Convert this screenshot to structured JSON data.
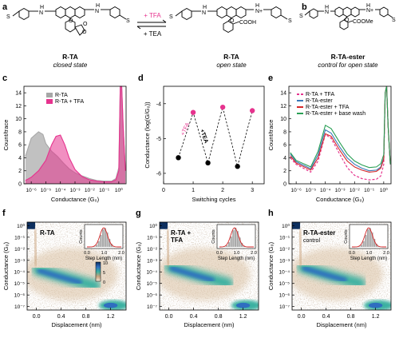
{
  "panel_letters": [
    "a",
    "b",
    "c",
    "d",
    "e",
    "f",
    "g",
    "h"
  ],
  "top": {
    "left_name": "R-TA",
    "left_state": "closed state",
    "arrow_top": "+ TFA",
    "arrow_bottom": "+ TEA",
    "mid_name": "R-TA",
    "mid_state": "open state",
    "right_name": "R-TA-ester",
    "right_state": "control for open state",
    "acid_group": "COOH",
    "ester_group": "COOMe",
    "atoms": {
      "H": "H",
      "N": "N",
      "Nplus": "N+",
      "O": "O",
      "S": "S"
    }
  },
  "colors": {
    "tfa": "#e6338e",
    "gray": "#a7a7a7",
    "blue": "#3a78b8",
    "red": "#d62728",
    "green": "#2aa055",
    "dark": "#0d2f5f"
  },
  "chart_data": [
    {
      "panel": "c",
      "type": "area",
      "ylabel": "Count/trace",
      "xlabel": "Conductance (G₀)",
      "xticks": [
        "10⁻⁶",
        "10⁻⁵",
        "10⁻⁴",
        "10⁻³",
        "10⁻²",
        "10⁻¹",
        "10⁰"
      ],
      "yticks": [
        "0",
        "2",
        "4",
        "6",
        "8",
        "10",
        "12",
        "14"
      ],
      "ylim": [
        0,
        15
      ],
      "series": [
        {
          "name": "R-TA",
          "x": [
            -6.4,
            -6,
            -5.5,
            -5.2,
            -5,
            -4.6,
            -4.2,
            -3.8,
            -3.4,
            -3,
            -2.5,
            -2,
            -1.5,
            -1,
            -0.5,
            -0.2,
            0,
            0.1,
            0.2,
            0.3,
            0.45
          ],
          "values": [
            4.2,
            7.0,
            8.0,
            7.6,
            6.2,
            5.0,
            4.2,
            3.2,
            2.3,
            1.7,
            1.2,
            0.8,
            0.5,
            0.4,
            0.4,
            0.8,
            2.5,
            15,
            15,
            9,
            2
          ]
        },
        {
          "name": "R-TA + TFA",
          "x": [
            -6.4,
            -6,
            -5.5,
            -5,
            -4.6,
            -4.3,
            -4,
            -3.7,
            -3.4,
            -3,
            -2.5,
            -2,
            -1.5,
            -1,
            -0.5,
            -0.2,
            0,
            0.1,
            0.2,
            0.3,
            0.45
          ],
          "values": [
            0.5,
            1.0,
            2.0,
            3.6,
            6.0,
            7.3,
            7.5,
            6.0,
            4.0,
            2.2,
            1.1,
            0.6,
            0.4,
            0.3,
            0.3,
            0.6,
            2.0,
            15,
            15,
            9,
            2
          ]
        }
      ]
    },
    {
      "panel": "d",
      "type": "scatter",
      "ylabel": "Conductance (log(G/G₀))",
      "xlabel": "Switching cycles",
      "xticks": [
        "0",
        "1",
        "2",
        "3"
      ],
      "yticks": [
        "-6",
        "-5",
        "-4"
      ],
      "xlim": [
        0,
        3.4
      ],
      "ylim": [
        -6.3,
        -3.5
      ],
      "annotations": [
        "+TFA",
        "+TEA"
      ],
      "series": [
        {
          "name": "open",
          "x": [
            1,
            2,
            3
          ],
          "values": [
            -4.25,
            -4.1,
            -4.2
          ]
        },
        {
          "name": "closed",
          "x": [
            0.5,
            1.5,
            2.5
          ],
          "values": [
            -5.55,
            -5.7,
            -5.8
          ]
        }
      ]
    },
    {
      "panel": "e",
      "type": "line",
      "ylabel": "Count/trace",
      "xlabel": "Conductance (G₀)",
      "xticks": [
        "10⁻⁶",
        "10⁻⁵",
        "10⁻⁴",
        "10⁻³",
        "10⁻²",
        "10⁻¹",
        "10⁰"
      ],
      "yticks": [
        "0",
        "2",
        "4",
        "6",
        "8",
        "10",
        "12",
        "14"
      ],
      "ylim": [
        0,
        15
      ],
      "series": [
        {
          "name": "R-TA + TFA",
          "x": [
            -6.4,
            -6,
            -5,
            -4.5,
            -4,
            -3.6,
            -3,
            -2.5,
            -2,
            -1.5,
            -1,
            -0.5,
            -0.2,
            0,
            0.1,
            0.2,
            0.3,
            0.45
          ],
          "values": [
            4,
            3,
            1.8,
            3.5,
            7.6,
            7.0,
            4.5,
            2.5,
            1.3,
            0.8,
            0.6,
            0.7,
            1.2,
            3,
            14,
            15,
            9,
            3
          ]
        },
        {
          "name": "R-TA-ester",
          "x": [
            -6.4,
            -6,
            -5,
            -4.5,
            -4,
            -3.6,
            -3,
            -2.5,
            -2,
            -1.5,
            -1,
            -0.5,
            -0.2,
            0,
            0.1,
            0.2,
            0.3,
            0.45
          ],
          "values": [
            4.6,
            3.4,
            2.3,
            4.5,
            8.3,
            7.8,
            5.6,
            4.0,
            3.0,
            2.4,
            2.0,
            2.1,
            2.6,
            4,
            14,
            15,
            9,
            3
          ]
        },
        {
          "name": "R-TA-ester + TFA",
          "x": [
            -6.4,
            -6,
            -5,
            -4.5,
            -4,
            -3.6,
            -3,
            -2.5,
            -2,
            -1.5,
            -1,
            -0.5,
            -0.2,
            0,
            0.1,
            0.2,
            0.3,
            0.45
          ],
          "values": [
            4.3,
            3.2,
            2.1,
            4.0,
            7.7,
            7.3,
            5.1,
            3.5,
            2.6,
            2.1,
            1.8,
            1.9,
            2.4,
            3.8,
            14,
            15,
            9,
            3
          ]
        },
        {
          "name": "R-TA-ester + base wash",
          "x": [
            -6.4,
            -6,
            -5,
            -4.5,
            -4,
            -3.6,
            -3,
            -2.5,
            -2,
            -1.5,
            -1,
            -0.5,
            -0.2,
            0,
            0.1,
            0.2,
            0.3,
            0.45
          ],
          "values": [
            4.8,
            3.6,
            2.6,
            5.0,
            9.0,
            8.5,
            6.3,
            4.6,
            3.5,
            2.9,
            2.5,
            2.6,
            3.1,
            4.5,
            14,
            15,
            9,
            3
          ]
        }
      ]
    },
    {
      "panel": "f",
      "type": "heatmap",
      "label": "R-TA",
      "ylabel": "Conductance (G₀)",
      "xlabel": "Displacement (nm)",
      "xticks": [
        "0.0",
        "0.4",
        "0.8",
        "1.2"
      ],
      "yticks": [
        "10⁰",
        "10⁻¹",
        "10⁻²",
        "10⁻³",
        "10⁻⁴",
        "10⁻⁵",
        "10⁻⁶",
        "10⁻⁷"
      ],
      "colorbar": [
        "10",
        "5",
        "0"
      ],
      "inset": {
        "xlabel": "Step Length (nm)",
        "ylabel": "Counts",
        "xticks": [
          "0.0",
          "1.0",
          "2.0"
        ],
        "peak": 1.0
      }
    },
    {
      "panel": "g",
      "type": "heatmap",
      "label": "R-TA + TFA",
      "ylabel": "Conductance (G₀)",
      "xlabel": "Displacement (nm)",
      "xticks": [
        "0.0",
        "0.4",
        "0.8",
        "1.2"
      ],
      "yticks": [
        "10⁰",
        "10⁻¹",
        "10⁻²",
        "10⁻³",
        "10⁻⁴",
        "10⁻⁵",
        "10⁻⁶",
        "10⁻⁷"
      ],
      "inset": {
        "xlabel": "Step Length (nm)",
        "ylabel": "Counts",
        "xticks": [
          "0.0",
          "1.0",
          "2.0"
        ],
        "peak": 0.9
      }
    },
    {
      "panel": "h",
      "type": "heatmap",
      "label": "R-TA-ester control",
      "ylabel": "Conductance (G₀)",
      "xlabel": "Displacement (nm)",
      "xticks": [
        "0.0",
        "0.4",
        "0.8",
        "1.2"
      ],
      "yticks": [
        "10⁰",
        "10⁻¹",
        "10⁻²",
        "10⁻³",
        "10⁻⁴",
        "10⁻⁵",
        "10⁻⁶",
        "10⁻⁷"
      ],
      "inset": {
        "xlabel": "Step Length (nm)",
        "ylabel": "Counts",
        "xticks": [
          "0.0",
          "1.0",
          "2.0"
        ],
        "peak": 1.0
      }
    }
  ]
}
